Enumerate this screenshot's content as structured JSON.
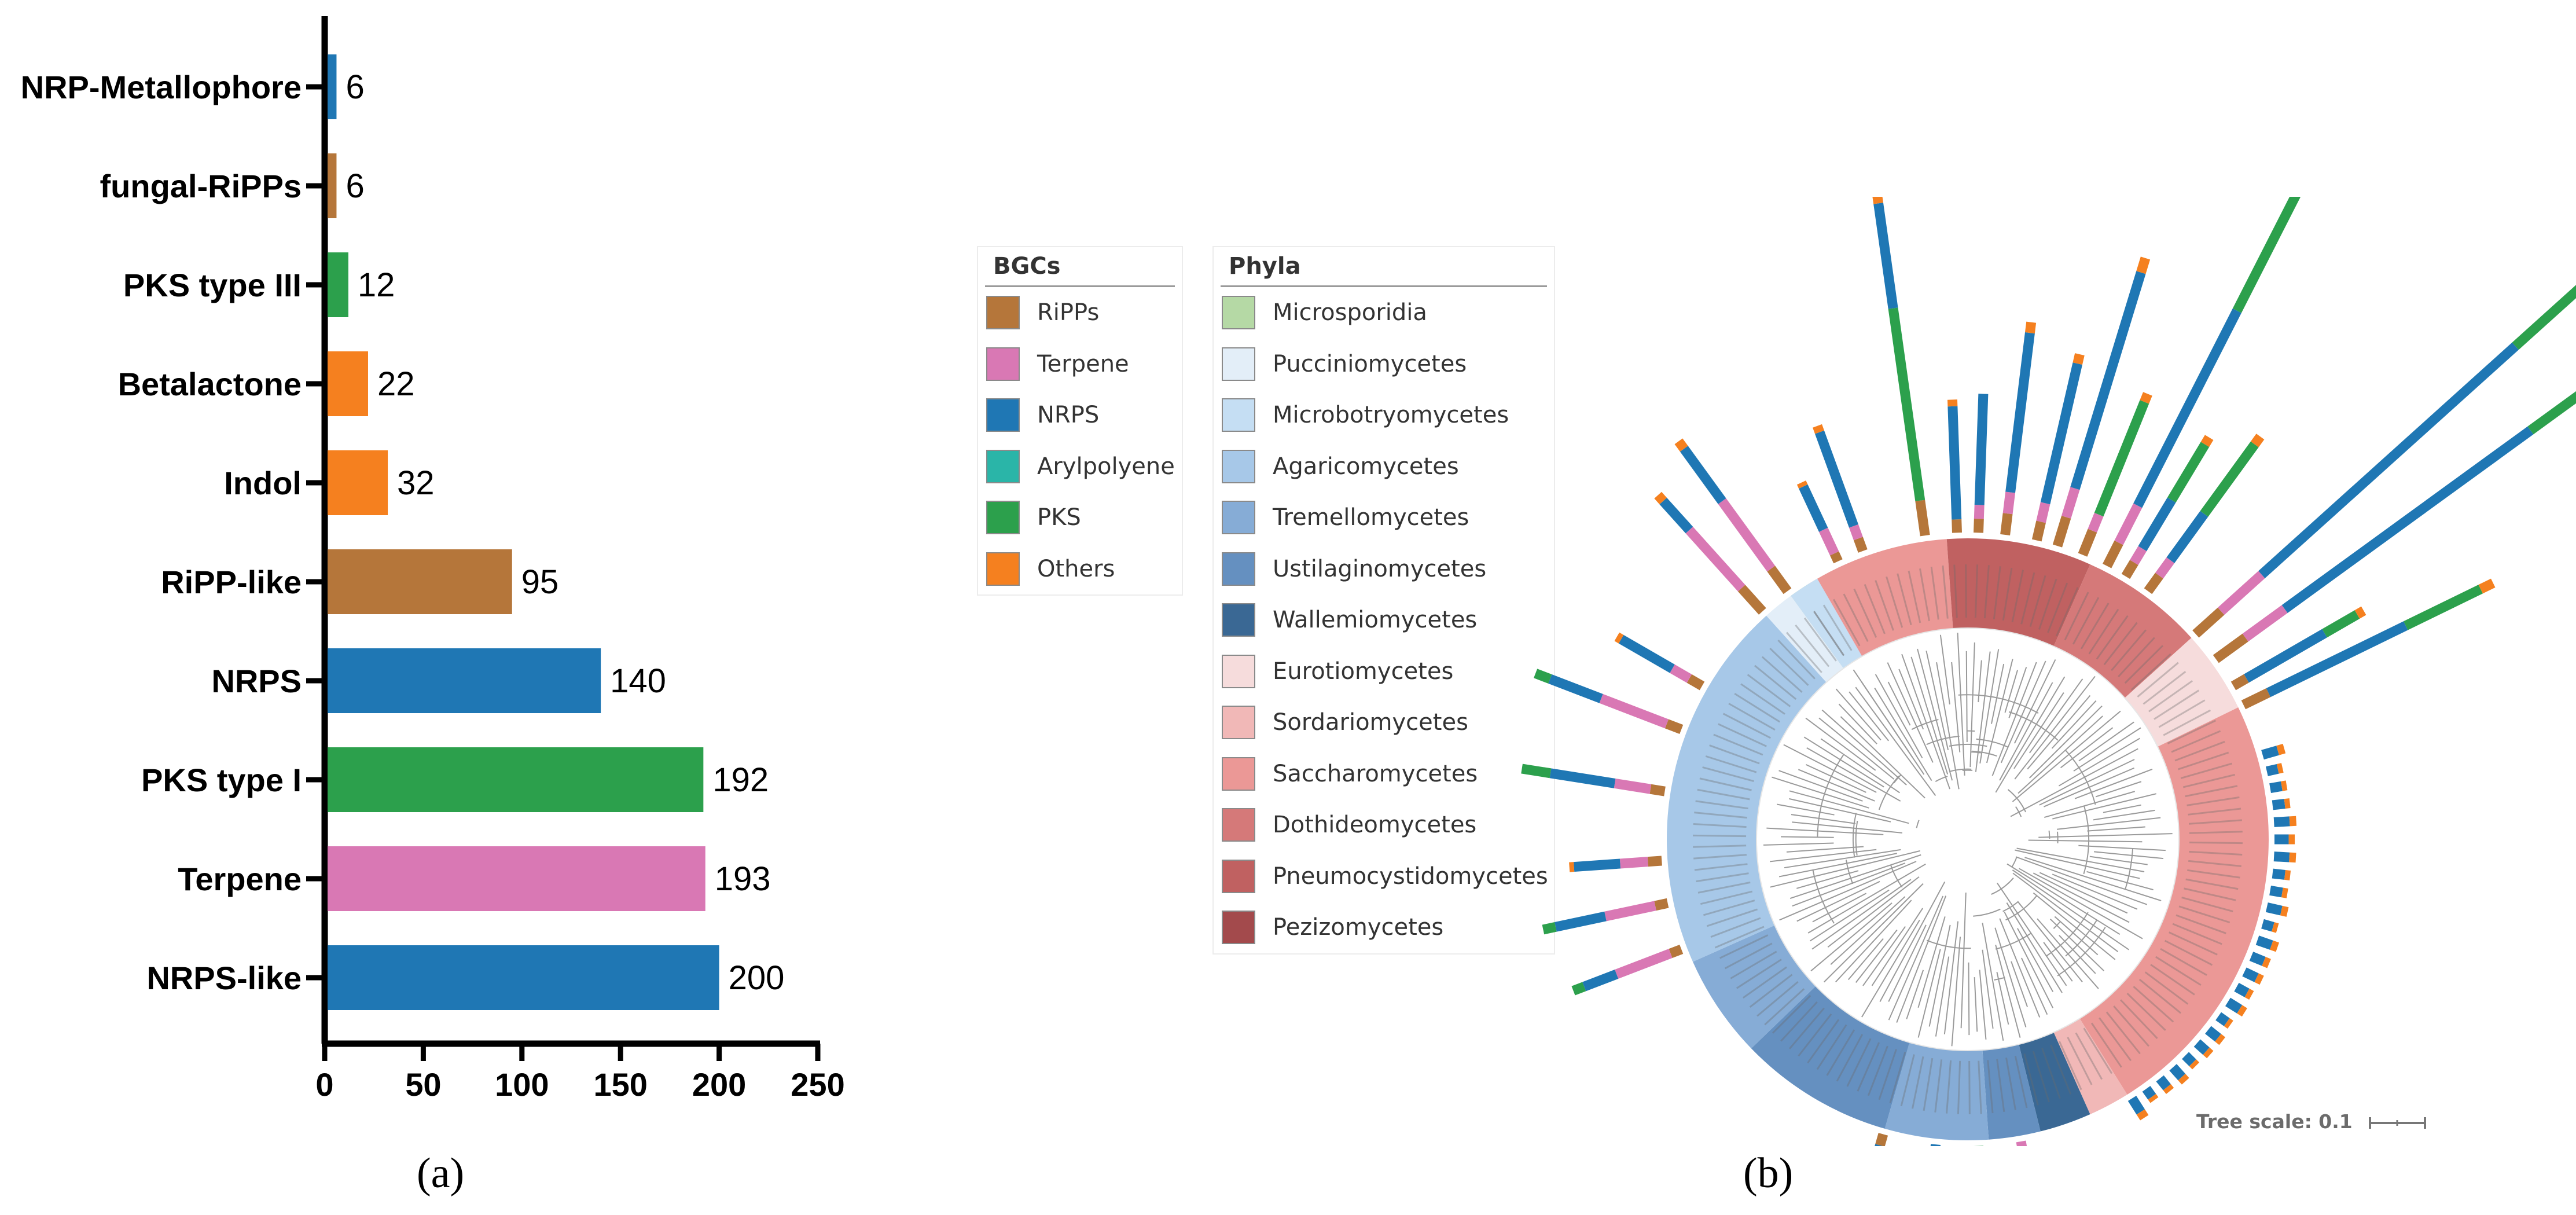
{
  "chart_data": [
    {
      "type": "bar",
      "orientation": "horizontal",
      "categories": [
        "NRP-Metallophore",
        "fungal-RiPPs",
        "PKS type III",
        "Betalactone",
        "Indol",
        "RiPP-like",
        "NRPS",
        "PKS type I",
        "Terpene",
        "NRPS-like"
      ],
      "values": [
        6,
        6,
        12,
        22,
        32,
        95,
        140,
        192,
        193,
        200
      ],
      "bar_colors": [
        "#1f77b4",
        "#b5763a",
        "#2ca04c",
        "#f5801f",
        "#f5801f",
        "#b5763a",
        "#1f77b4",
        "#2ca04c",
        "#d978b4",
        "#1f77b4"
      ],
      "xlabel": "",
      "ylabel": "",
      "xlim": [
        0,
        250
      ],
      "xticks": [
        0,
        50,
        100,
        150,
        200,
        250
      ],
      "grid": false,
      "panel_label": "(a)"
    },
    {
      "type": "other",
      "description_label": "circular phylogenetic tree",
      "panel_label": "(b)",
      "tree_scale_label": "Tree scale: 0.1",
      "legends": [
        {
          "title": "BGCs",
          "items": [
            {
              "label": "RiPPs",
              "color": "#b5763a"
            },
            {
              "label": "Terpene",
              "color": "#d978b4"
            },
            {
              "label": "NRPS",
              "color": "#1f77b4"
            },
            {
              "label": "Arylpolyene",
              "color": "#2ab5a8"
            },
            {
              "label": "PKS",
              "color": "#2ca04c"
            },
            {
              "label": "Others",
              "color": "#f5801f"
            }
          ]
        },
        {
          "title": "Phyla",
          "items": [
            {
              "label": "Microsporidia",
              "color": "#b5d9a5"
            },
            {
              "label": "Pucciniomycetes",
              "color": "#e3eef8"
            },
            {
              "label": "Microbotryomycetes",
              "color": "#c5def3"
            },
            {
              "label": "Agaricomycetes",
              "color": "#a7c8e8"
            },
            {
              "label": "Tremellomycetes",
              "color": "#86acd6"
            },
            {
              "label": "Ustilaginomycetes",
              "color": "#6590c0"
            },
            {
              "label": "Wallemiomycetes",
              "color": "#3a6894"
            },
            {
              "label": "Eurotiomycetes",
              "color": "#f6dcdc"
            },
            {
              "label": "Sordariomycetes",
              "color": "#f1b8b7"
            },
            {
              "label": "Saccharomycetes",
              "color": "#eb9896"
            },
            {
              "label": "Dothideomycetes",
              "color": "#d57979"
            },
            {
              "label": "Pneumocystidomycetes",
              "color": "#c06161"
            },
            {
              "label": "Pezizomycetes",
              "color": "#a34a4c"
            }
          ]
        }
      ]
    }
  ]
}
